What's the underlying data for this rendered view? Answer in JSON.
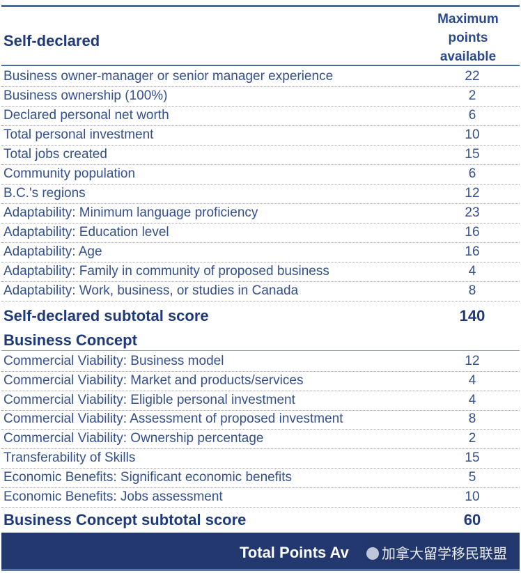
{
  "header": {
    "section_title": "Self-declared",
    "max_col_lines": [
      "Maximum",
      "points",
      "available"
    ]
  },
  "self_declared": [
    {
      "label": "Business owner-manager or senior manager experience",
      "points": "22"
    },
    {
      "label": "Business ownership (100%)",
      "points": "2"
    },
    {
      "label": "Declared personal net worth",
      "points": "6"
    },
    {
      "label": "Total personal investment",
      "points": "10"
    },
    {
      "label": "Total jobs created",
      "points": "15"
    },
    {
      "label": "Community population",
      "points": "6"
    },
    {
      "label": "B.C.'s regions",
      "points": "12"
    },
    {
      "label": "Adaptability: Minimum language proficiency",
      "points": "23"
    },
    {
      "label": "Adaptability: Education level",
      "points": "16"
    },
    {
      "label": "Adaptability: Age",
      "points": "16"
    },
    {
      "label": "Adaptability: Family in community of proposed business",
      "points": "4"
    },
    {
      "label": "Adaptability: Work, business, or studies in Canada",
      "points": "8"
    }
  ],
  "self_declared_subtotal": {
    "label": "Self-declared subtotal score",
    "points": "140"
  },
  "business_concept_title": "Business Concept",
  "business_concept": [
    {
      "label": "Commercial Viability: Business model",
      "points": "12"
    },
    {
      "label": "Commercial Viability: Market and products/services",
      "points": "4"
    },
    {
      "label": "Commercial Viability: Eligible personal investment",
      "points": "4"
    },
    {
      "label": "Commercial Viability: Assessment of proposed investment",
      "points": "8"
    },
    {
      "label": "Commercial Viability: Ownership percentage",
      "points": "2"
    },
    {
      "label": "Transferability of Skills",
      "points": "15"
    },
    {
      "label": "Economic Benefits: Significant economic benefits",
      "points": "5"
    },
    {
      "label": "Economic Benefits: Jobs assessment",
      "points": "10"
    }
  ],
  "business_concept_subtotal": {
    "label": "Business Concept subtotal score",
    "points": "60"
  },
  "footer": {
    "label": "Total Points Av",
    "watermark": "加拿大留学移民联盟"
  }
}
